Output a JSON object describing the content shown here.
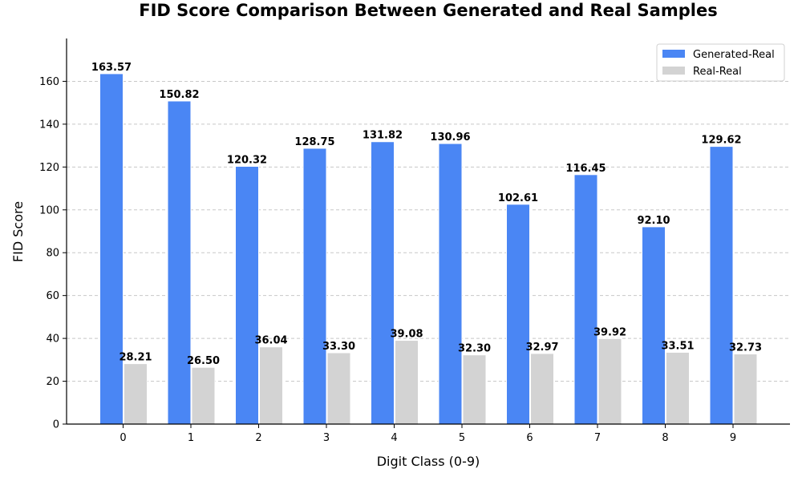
{
  "chart_data": {
    "type": "bar",
    "title": "FID Score Comparison Between Generated and Real Samples",
    "xlabel": "Digit Class (0-9)",
    "ylabel": "FID Score",
    "categories": [
      "0",
      "1",
      "2",
      "3",
      "4",
      "5",
      "6",
      "7",
      "8",
      "9"
    ],
    "series": [
      {
        "name": "Generated-Real",
        "color": "#4a86f4",
        "values": [
          163.57,
          150.82,
          120.32,
          128.75,
          131.82,
          130.96,
          102.61,
          116.45,
          92.1,
          129.62
        ],
        "labels": [
          "163.57",
          "150.82",
          "120.32",
          "128.75",
          "131.82",
          "130.96",
          "102.61",
          "116.45",
          "92.10",
          "129.62"
        ]
      },
      {
        "name": "Real-Real",
        "color": "#d3d3d3",
        "values": [
          28.21,
          26.5,
          36.04,
          33.3,
          39.08,
          32.3,
          32.97,
          39.92,
          33.51,
          32.73
        ],
        "labels": [
          "28.21",
          "26.50",
          "36.04",
          "33.30",
          "39.08",
          "32.30",
          "32.97",
          "39.92",
          "33.51",
          "32.73"
        ]
      }
    ],
    "yticks": [
      0,
      20,
      40,
      60,
      80,
      100,
      120,
      140,
      160
    ],
    "ylim": [
      0,
      180
    ],
    "grid": "y-dashed",
    "legend_position": "top-right"
  }
}
